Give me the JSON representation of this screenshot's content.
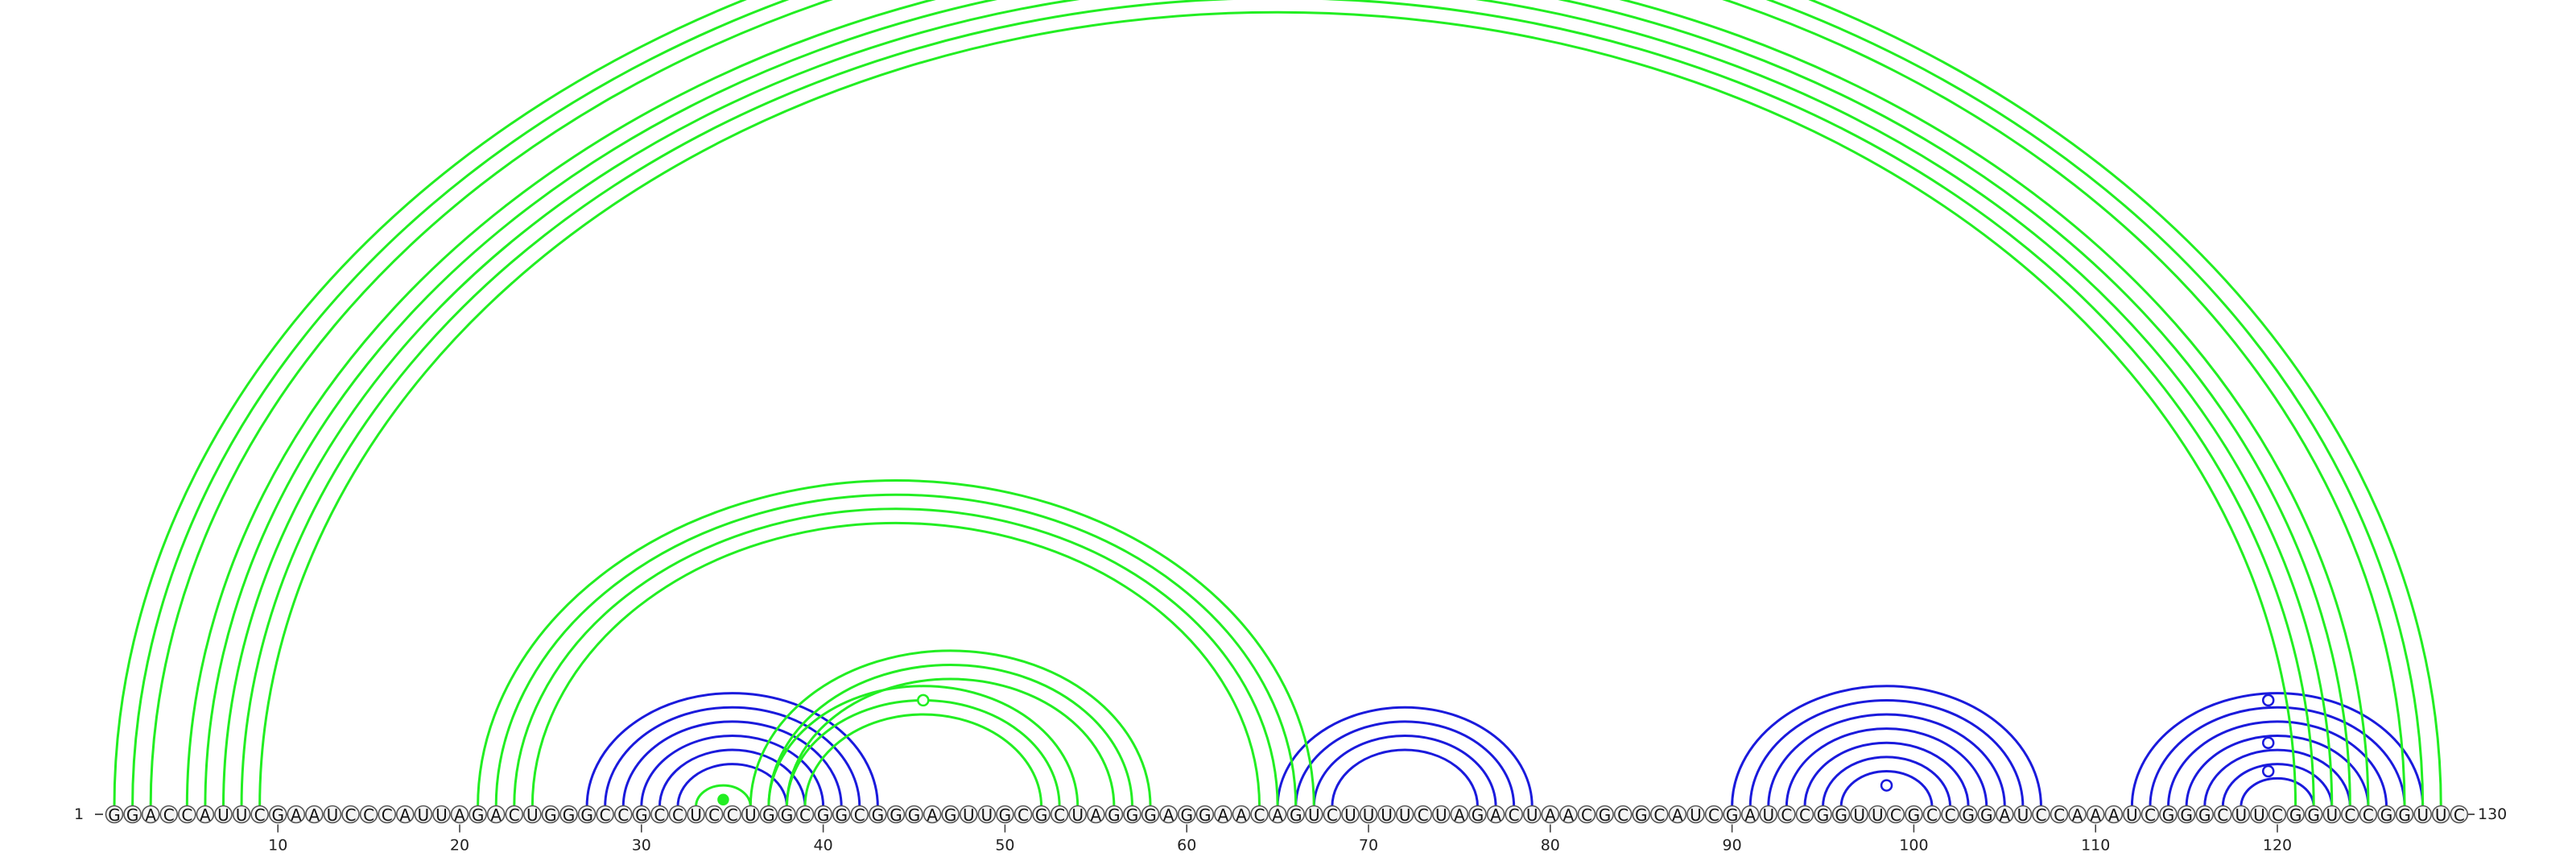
{
  "sequence": "GGACCAUUCGAAUCCCAUUAGACUGGGCCGCCUCCUGGCGGCGGGAGUUGCGCUAGGGAGGAACAGUCUUUUCUAGACUAACGCGCAUCGAUCCGGUUCGCCGGAUCCAAAUCGGGCUUCGGUCCGGUUC",
  "start_label": "1",
  "end_label": "130",
  "ticks": [
    "10",
    "20",
    "30",
    "40",
    "50",
    "60",
    "70",
    "80",
    "90",
    "100",
    "110",
    "120"
  ],
  "colors": {
    "green": "#22ee22",
    "blue": "#1a1adc",
    "circle_stroke": "#555555",
    "circle_fill": "#f4f4f4"
  },
  "green_helices": [
    {
      "i": 1,
      "j": 129,
      "len": 3
    },
    {
      "i": 5,
      "j": 125,
      "len": 5
    },
    {
      "i": 21,
      "j": 67,
      "len": 4
    },
    {
      "i": 36,
      "j": 58,
      "len": 3
    },
    {
      "i": 37,
      "j": 54,
      "len": 3
    },
    {
      "i": 33,
      "j": 36,
      "len": 1
    }
  ],
  "blue_helices": [
    {
      "i": 27,
      "j": 43,
      "len": 6
    },
    {
      "i": 65,
      "j": 79,
      "len": 4
    },
    {
      "i": 90,
      "j": 107,
      "len": 7
    },
    {
      "i": 112,
      "j": 128,
      "len": 7
    }
  ],
  "markers": [
    {
      "x": 65.5,
      "arc_i": 2,
      "arc_j": 129,
      "color": "green",
      "filled": false
    },
    {
      "x": 45.5,
      "arc_i": 38,
      "arc_j": 53,
      "color": "green",
      "filled": false
    },
    {
      "x": 34.5,
      "arc_i": 34,
      "arc_j": 35,
      "color": "green",
      "filled": true
    },
    {
      "x": 98.5,
      "arc_i": 97,
      "arc_j": 100,
      "color": "blue",
      "filled": false
    },
    {
      "x": 119.5,
      "arc_i": 112,
      "arc_j": 127,
      "color": "blue",
      "filled": false
    },
    {
      "x": 119.5,
      "arc_i": 115,
      "arc_j": 124,
      "color": "blue",
      "filled": false
    },
    {
      "x": 119.5,
      "arc_i": 117,
      "arc_j": 122,
      "color": "blue",
      "filled": false
    }
  ]
}
